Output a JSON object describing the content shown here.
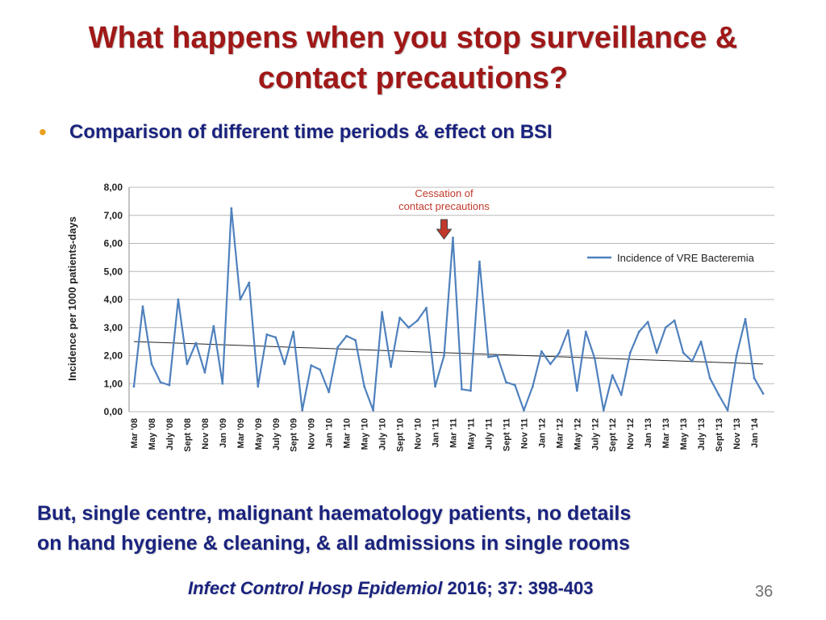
{
  "slide": {
    "title_line1": "What happens when you stop surveillance &",
    "title_line2": "contact precautions?",
    "bullet": "Comparison of different time periods & effect on BSI",
    "note_line1": "But, single centre, malignant haematology patients, no details",
    "note_line2": "on hand hygiene & cleaning, & all admissions in single rooms",
    "citation_journal": "Infect Control Hosp Epidemiol",
    "citation_rest": " 2016; 37: 398-403",
    "page_number": "36"
  },
  "colors": {
    "title": "#a01818",
    "body_text": "#1a237e",
    "bullet": "#e8a020",
    "series": "#4f81bd",
    "trend": "#222222",
    "annotation": "#c0392b"
  },
  "chart_data": {
    "type": "line",
    "ylabel": "Incidence per 1000 patients-days",
    "ylim": [
      0,
      8
    ],
    "yticks": [
      "0,00",
      "1,00",
      "2,00",
      "3,00",
      "4,00",
      "5,00",
      "6,00",
      "7,00",
      "8,00"
    ],
    "grid": true,
    "legend_position": "right",
    "x": [
      "Mar '08",
      "Apr '08",
      "May '08",
      "Jun '08",
      "July '08",
      "Aug '08",
      "Sept '08",
      "Oct '08",
      "Nov '08",
      "Dec '08",
      "Jan '09",
      "Feb '09",
      "Mar '09",
      "Apr '09",
      "May '09",
      "Jun '09",
      "July '09",
      "Aug '09",
      "Sept '09",
      "Oct '09",
      "Nov '09",
      "Dec '09",
      "Jan '10",
      "Feb '10",
      "Mar '10",
      "Apr '10",
      "May '10",
      "Jun '10",
      "July '10",
      "Aug '10",
      "Sept '10",
      "Oct '10",
      "Nov '10",
      "Dec '10",
      "Jan '11",
      "Feb '11",
      "Mar '11",
      "Apr '11",
      "May '11",
      "Jun '11",
      "July '11",
      "Aug '11",
      "Sept '11",
      "Oct '11",
      "Nov '11",
      "Dec '11",
      "Jan '12",
      "Feb '12",
      "Mar '12",
      "Apr '12",
      "May '12",
      "Jun '12",
      "July '12",
      "Aug '12",
      "Sept '12",
      "Oct '12",
      "Nov '12",
      "Dec '12",
      "Jan '13",
      "Feb '13",
      "Mar '13",
      "Apr '13",
      "May '13",
      "Jun '13",
      "July '13",
      "Aug '13",
      "Sept '13",
      "Oct '13",
      "Nov '13",
      "Dec '13",
      "Jan '14",
      "Feb '14"
    ],
    "tick_labels": [
      "Mar '08",
      "May '08",
      "July '08",
      "Sept '08",
      "Nov '08",
      "Jan '09",
      "Mar '09",
      "May '09",
      "July '09",
      "Sept '09",
      "Nov '09",
      "Jan '10",
      "Mar '10",
      "May '10",
      "July '10",
      "Sept '10",
      "Nov '10",
      "Jan '11",
      "Mar '11",
      "May '11",
      "July '11",
      "Sept '11",
      "Nov '11",
      "Jan '12",
      "Mar '12",
      "May '12",
      "July '12",
      "Sept '12",
      "Nov '12",
      "Jan '13",
      "Mar '13",
      "May '13",
      "July '13",
      "Sept '13",
      "Nov '13",
      "Jan '14"
    ],
    "series": [
      {
        "name": "Incidence of VRE Bacteremia",
        "values": [
          0.9,
          3.75,
          1.7,
          1.05,
          0.95,
          4.0,
          1.7,
          2.45,
          1.4,
          3.05,
          1.0,
          7.25,
          4.0,
          4.6,
          0.9,
          2.75,
          2.65,
          1.7,
          2.85,
          0.05,
          1.65,
          1.5,
          0.7,
          2.3,
          2.7,
          2.55,
          0.9,
          0.05,
          3.55,
          1.6,
          3.35,
          3.0,
          3.25,
          3.7,
          0.9,
          2.0,
          6.2,
          0.8,
          0.75,
          5.35,
          1.95,
          2.0,
          1.05,
          0.95,
          0.05,
          0.9,
          2.15,
          1.7,
          2.1,
          2.9,
          0.75,
          2.85,
          1.9,
          0.05,
          1.3,
          0.6,
          2.1,
          2.85,
          3.2,
          2.1,
          3.0,
          3.25,
          2.1,
          1.8,
          2.5,
          1.2,
          0.6,
          0.05,
          2.0,
          3.3,
          1.2,
          0.65
        ]
      }
    ],
    "trendline": {
      "start": 2.5,
      "end": 1.7
    },
    "annotation": {
      "text_line1": "Cessation of",
      "text_line2": "contact precautions",
      "at": "Mar '11"
    }
  }
}
